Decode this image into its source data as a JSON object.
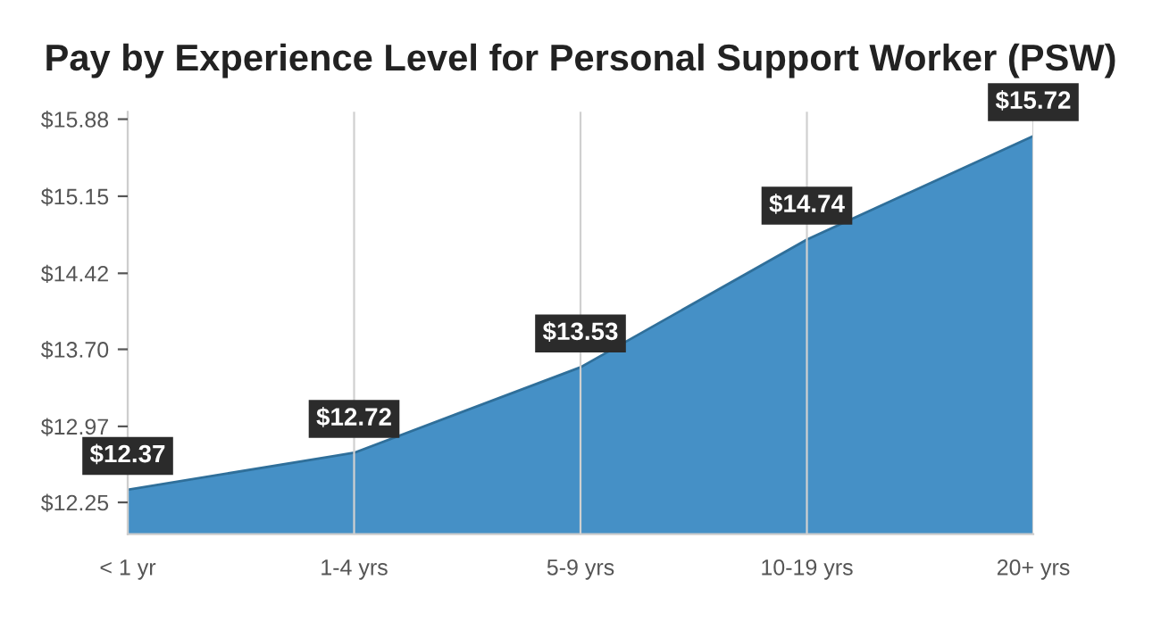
{
  "chart_data": {
    "type": "area",
    "title": "Pay by Experience Level for Personal Support Worker (PSW)",
    "categories": [
      "< 1 yr",
      "1-4 yrs",
      "5-9 yrs",
      "10-19 yrs",
      "20+ yrs"
    ],
    "series": [
      {
        "color": "#4590c6",
        "values": [
          12.37,
          12.72,
          13.53,
          14.74,
          15.72
        ],
        "value_labels": [
          "$12.37",
          "$12.72",
          "$13.53",
          "$14.74",
          "$15.72"
        ]
      }
    ],
    "ylim": [
      11.95,
      15.95
    ],
    "yticks": [
      {
        "value": 12.25,
        "label": "$12.25"
      },
      {
        "value": 12.97,
        "label": "$12.97"
      },
      {
        "value": 13.7,
        "label": "$13.70"
      },
      {
        "value": 14.42,
        "label": "$14.42"
      },
      {
        "value": 15.15,
        "label": "$15.15"
      },
      {
        "value": 15.88,
        "label": "$15.88"
      }
    ],
    "grid": "x",
    "legend": false
  }
}
